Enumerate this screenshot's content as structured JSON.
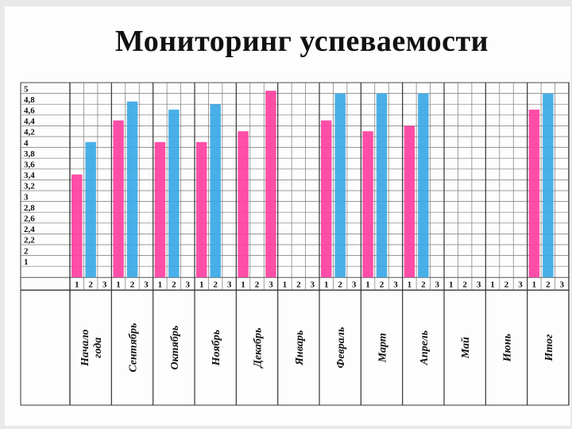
{
  "chart_data": {
    "type": "bar",
    "title": "Мониторинг успеваемости",
    "y_ticks": [
      "5",
      "4,8",
      "4,6",
      "4,4",
      "4,2",
      "4",
      "3,8",
      "3,6",
      "3,4",
      "3,2",
      "3",
      "2,8",
      "2,6",
      "2,4",
      "2,2",
      "2",
      "1"
    ],
    "sub_labels": [
      "1",
      "2",
      "3"
    ],
    "categories": [
      "Начало года",
      "Сентябрь",
      "Октябрь",
      "Ноябрь",
      "Декабрь",
      "Январь",
      "Февраль",
      "Март",
      "Апрель",
      "Май",
      "Июнь",
      "Итог"
    ],
    "series": [
      {
        "key": "s1",
        "color": "#ff3fa0",
        "values": [
          3.4,
          4.4,
          4.0,
          4.0,
          4.2,
          null,
          4.4,
          4.2,
          4.3,
          null,
          null,
          4.6
        ]
      },
      {
        "key": "s2",
        "color": "#3aa8e6",
        "values": [
          4.0,
          4.75,
          4.6,
          4.7,
          null,
          null,
          4.9,
          4.9,
          4.9,
          null,
          null,
          4.9
        ]
      },
      {
        "key": "s3",
        "color": "#ff3fa0",
        "values": [
          null,
          null,
          null,
          null,
          4.95,
          null,
          null,
          null,
          null,
          null,
          null,
          null
        ]
      }
    ],
    "grid": true
  }
}
